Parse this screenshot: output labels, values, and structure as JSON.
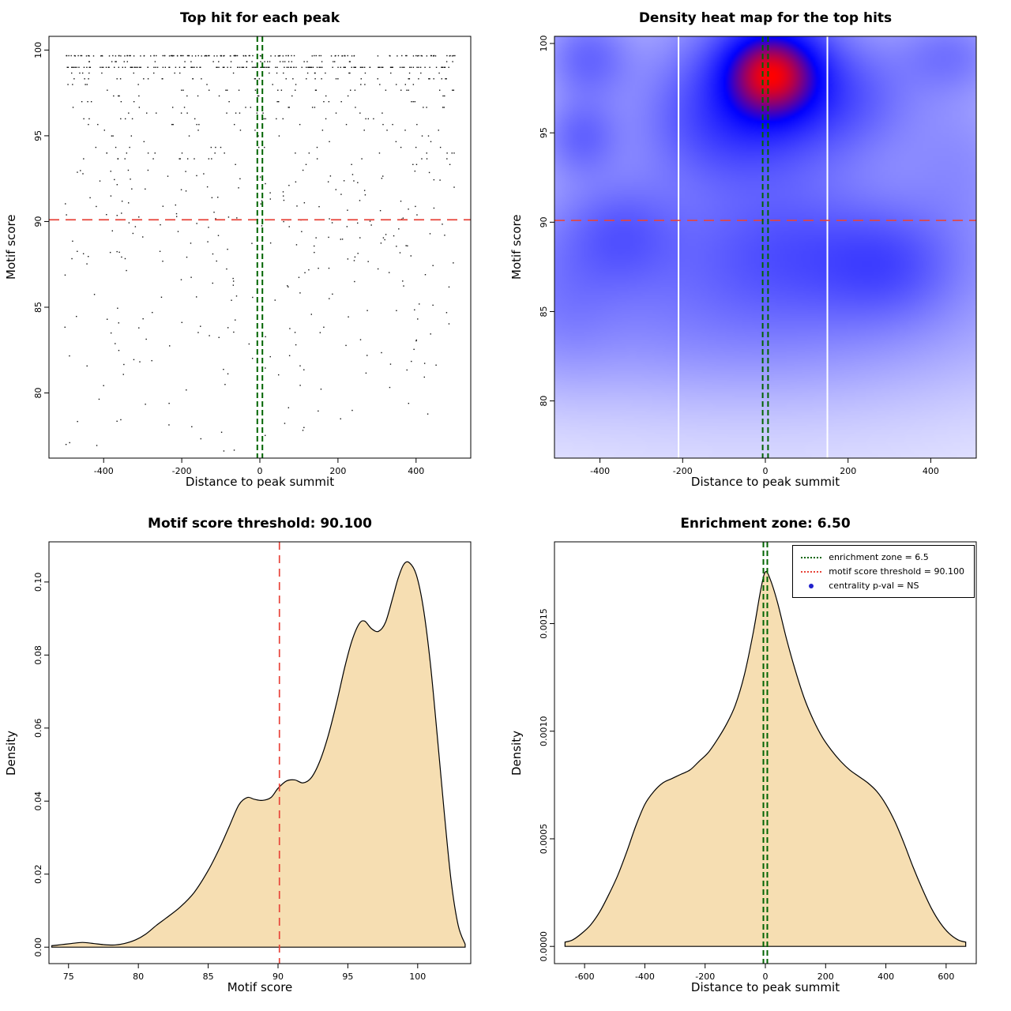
{
  "chart_data": [
    {
      "id": "top-hit-scatter",
      "type": "scatter",
      "title": "Top hit for each peak",
      "xlabel": "Distance to peak summit",
      "ylabel": "Motif score",
      "xlim": [
        -540,
        540
      ],
      "ylim": [
        76.2,
        100.8
      ],
      "xticks": [
        -400,
        -200,
        0,
        200,
        400
      ],
      "xtick_labels": [
        "-400",
        "-200",
        "0",
        "200",
        "400"
      ],
      "yticks": [
        80,
        85,
        90,
        95,
        100
      ],
      "ytick_labels": [
        "80",
        "85",
        "90",
        "95",
        "100"
      ],
      "point_color": "#111111",
      "points": {
        "n": 870,
        "seed": 11,
        "x_min": -500,
        "x_max": 500,
        "y_top": 99.67,
        "y_spread": 23.5,
        "band_above": 93,
        "band_step": 0.3333,
        "dense_row": 99.0,
        "dense_row_prob": 0.12,
        "outlier": [
          -487,
          77.1
        ],
        "note": "scores dense near 100, thinning toward 77; discrete score bands above 93"
      },
      "ref_lines": [
        {
          "axis": "y",
          "value": 90.1,
          "color": "#e8443a",
          "dash": [
            13,
            8
          ],
          "width": 1.7
        },
        {
          "axis": "x",
          "value": -6.5,
          "color": "#006400",
          "dash": [
            7,
            4
          ],
          "width": 2
        },
        {
          "axis": "x",
          "value": 6.5,
          "color": "#006400",
          "dash": [
            7,
            4
          ],
          "width": 2
        }
      ]
    },
    {
      "id": "top-hit-density-heatmap",
      "type": "heatmap",
      "title": "Density heat map for the top hits",
      "xlabel": "Distance to peak summit",
      "ylabel": "Motif score",
      "xlim": [
        -510,
        510
      ],
      "ylim": [
        76.8,
        100.4
      ],
      "xticks": [
        -400,
        -200,
        0,
        200,
        400
      ],
      "xtick_labels": [
        "-400",
        "-200",
        "0",
        "200",
        "400"
      ],
      "yticks": [
        80,
        85,
        90,
        95,
        100
      ],
      "ytick_labels": [
        "80",
        "85",
        "90",
        "95",
        "100"
      ],
      "colormap": [
        "#ffffff",
        "#0000ff",
        "#ff0000"
      ],
      "gamma": 0.55,
      "kernels": [
        {
          "cx": 15,
          "cy": 98.4,
          "sx": 78,
          "sy": 1.7,
          "w": 1.0
        },
        {
          "cx": 0,
          "cy": 97.2,
          "sx": 165,
          "sy": 3.2,
          "w": 0.42
        },
        {
          "cx": -120,
          "cy": 95.3,
          "sx": 120,
          "sy": 2.2,
          "w": 0.16
        },
        {
          "cx": -430,
          "cy": 99.2,
          "sx": 70,
          "sy": 1.6,
          "w": 0.26
        },
        {
          "cx": -445,
          "cy": 94.8,
          "sx": 62,
          "sy": 1.5,
          "w": 0.24
        },
        {
          "cx": 445,
          "cy": 99.4,
          "sx": 85,
          "sy": 1.5,
          "w": 0.2
        },
        {
          "cx": 205,
          "cy": 97.0,
          "sx": 110,
          "sy": 2.0,
          "w": 0.16
        },
        {
          "cx": -350,
          "cy": 89.3,
          "sx": 95,
          "sy": 2.0,
          "w": 0.22
        },
        {
          "cx": 60,
          "cy": 88.3,
          "sx": 170,
          "sy": 2.4,
          "w": 0.2
        },
        {
          "cx": 300,
          "cy": 87.6,
          "sx": 110,
          "sy": 2.0,
          "w": 0.22
        },
        {
          "cx": 0,
          "cy": 87.8,
          "sx": 500,
          "sy": 3.6,
          "w": 0.12
        },
        {
          "cx": -80,
          "cy": 84.0,
          "sx": 420,
          "sy": 2.6,
          "w": 0.1
        },
        {
          "cx": 470,
          "cy": 93.5,
          "sx": 100,
          "sy": 3.0,
          "w": 0.1
        },
        {
          "cx": -490,
          "cy": 86.0,
          "sx": 90,
          "sy": 3.0,
          "w": 0.1
        },
        {
          "cx": 0,
          "cy": 92.5,
          "sx": 620,
          "sy": 9.5,
          "w": 0.1
        }
      ],
      "white_streaks": [
        -210,
        150
      ],
      "ref_lines": [
        {
          "axis": "y",
          "value": 90.1,
          "color": "#e8443a",
          "dash": [
            13,
            8
          ],
          "width": 1.7
        },
        {
          "axis": "x",
          "value": -6.5,
          "color": "#006400",
          "dash": [
            7,
            4
          ],
          "width": 2
        },
        {
          "axis": "x",
          "value": 6.5,
          "color": "#006400",
          "dash": [
            7,
            4
          ],
          "width": 2
        }
      ]
    },
    {
      "id": "motif-score-density",
      "type": "area",
      "title": "Motif score threshold: 90.100",
      "xlabel": "Motif score",
      "ylabel": "Density",
      "xlim": [
        73.6,
        103.8
      ],
      "ylim": [
        -0.0045,
        0.111
      ],
      "xticks": [
        75,
        80,
        85,
        90,
        95,
        100
      ],
      "xtick_labels": [
        "75",
        "80",
        "85",
        "90",
        "95",
        "100"
      ],
      "yticks": [
        0,
        0.02,
        0.04,
        0.06,
        0.08,
        0.1
      ],
      "ytick_labels": [
        "0.00",
        "0.02",
        "0.04",
        "0.06",
        "0.08",
        "0.10"
      ],
      "fill": "#f6deb2",
      "line": "#000000",
      "curve": {
        "x": [
          73.8,
          74.5,
          75.2,
          76,
          76.8,
          77.5,
          78.3,
          79,
          79.8,
          80.5,
          81.3,
          82,
          83,
          84,
          85,
          85.8,
          86.5,
          87.2,
          87.8,
          88.3,
          88.9,
          89.5,
          90,
          90.6,
          91.2,
          91.8,
          92.4,
          93,
          93.6,
          94.2,
          94.8,
          95.3,
          95.8,
          96.2,
          96.7,
          97.2,
          97.7,
          98.2,
          98.6,
          99,
          99.4,
          99.9,
          100.4,
          100.9,
          101.4,
          101.9,
          102.4,
          102.9,
          103.4
        ],
        "y": [
          0.0004,
          0.0007,
          0.001,
          0.0013,
          0.001,
          0.0007,
          0.0006,
          0.001,
          0.002,
          0.0035,
          0.006,
          0.008,
          0.011,
          0.015,
          0.021,
          0.027,
          0.033,
          0.039,
          0.041,
          0.0405,
          0.0402,
          0.041,
          0.0435,
          0.0455,
          0.0458,
          0.045,
          0.0465,
          0.051,
          0.058,
          0.067,
          0.077,
          0.084,
          0.0885,
          0.0893,
          0.0872,
          0.0865,
          0.089,
          0.0955,
          0.101,
          0.1048,
          0.1053,
          0.102,
          0.093,
          0.078,
          0.058,
          0.037,
          0.018,
          0.006,
          0.0008
        ]
      },
      "ref_lines": [
        {
          "axis": "x",
          "value": 90.1,
          "color": "#e8443a",
          "dash": [
            10,
            7
          ],
          "width": 1.7
        }
      ]
    },
    {
      "id": "summit-distance-density",
      "type": "area",
      "title": "Enrichment zone: 6.50",
      "xlabel": "Distance to peak summit",
      "ylabel": "Density",
      "xlim": [
        -700,
        700
      ],
      "ylim": [
        -8e-05,
        0.00188
      ],
      "xticks": [
        -600,
        -400,
        -200,
        0,
        200,
        400,
        600
      ],
      "xtick_labels": [
        "-600",
        "-400",
        "-200",
        "0",
        "200",
        "400",
        "600"
      ],
      "yticks": [
        0,
        0.0005,
        0.001,
        0.0015
      ],
      "ytick_labels": [
        "0.0000",
        "0.0005",
        "0.0010",
        "0.0015"
      ],
      "fill": "#f6deb2",
      "line": "#000000",
      "curve": {
        "x": [
          -665,
          -640,
          -610,
          -580,
          -550,
          -520,
          -490,
          -460,
          -430,
          -400,
          -370,
          -340,
          -310,
          -280,
          -250,
          -220,
          -190,
          -160,
          -130,
          -100,
          -70,
          -40,
          -15,
          0,
          15,
          40,
          70,
          100,
          130,
          160,
          190,
          220,
          250,
          280,
          310,
          340,
          370,
          400,
          430,
          460,
          490,
          520,
          550,
          580,
          610,
          640,
          665
        ],
        "y": [
          2e-05,
          3e-05,
          6e-05,
          0.0001,
          0.00016,
          0.00024,
          0.00033,
          0.00044,
          0.00056,
          0.00066,
          0.00072,
          0.00076,
          0.00078,
          0.0008,
          0.00082,
          0.00086,
          0.0009,
          0.00096,
          0.00103,
          0.00112,
          0.00126,
          0.00146,
          0.00166,
          0.00174,
          0.00171,
          0.0016,
          0.00143,
          0.00128,
          0.00115,
          0.00105,
          0.00097,
          0.00091,
          0.00086,
          0.00082,
          0.00079,
          0.00076,
          0.00072,
          0.00066,
          0.00058,
          0.00048,
          0.00037,
          0.00027,
          0.00018,
          0.00011,
          6e-05,
          3e-05,
          2e-05
        ]
      },
      "ref_lines": [
        {
          "axis": "x",
          "value": -6.5,
          "color": "#006400",
          "dash": [
            7,
            4
          ],
          "width": 2
        },
        {
          "axis": "x",
          "value": 6.5,
          "color": "#006400",
          "dash": [
            7,
            4
          ],
          "width": 2
        }
      ],
      "legend": {
        "items": [
          {
            "label": "enrichment zone = 6.5",
            "color": "#006400",
            "marker": "dotted-line"
          },
          {
            "label": "motif score threshold = 90.100",
            "color": "#e8443a",
            "marker": "dotted-line"
          },
          {
            "label": "centrality p-val = NS",
            "color": "#2020cc",
            "marker": "point"
          }
        ]
      }
    }
  ]
}
